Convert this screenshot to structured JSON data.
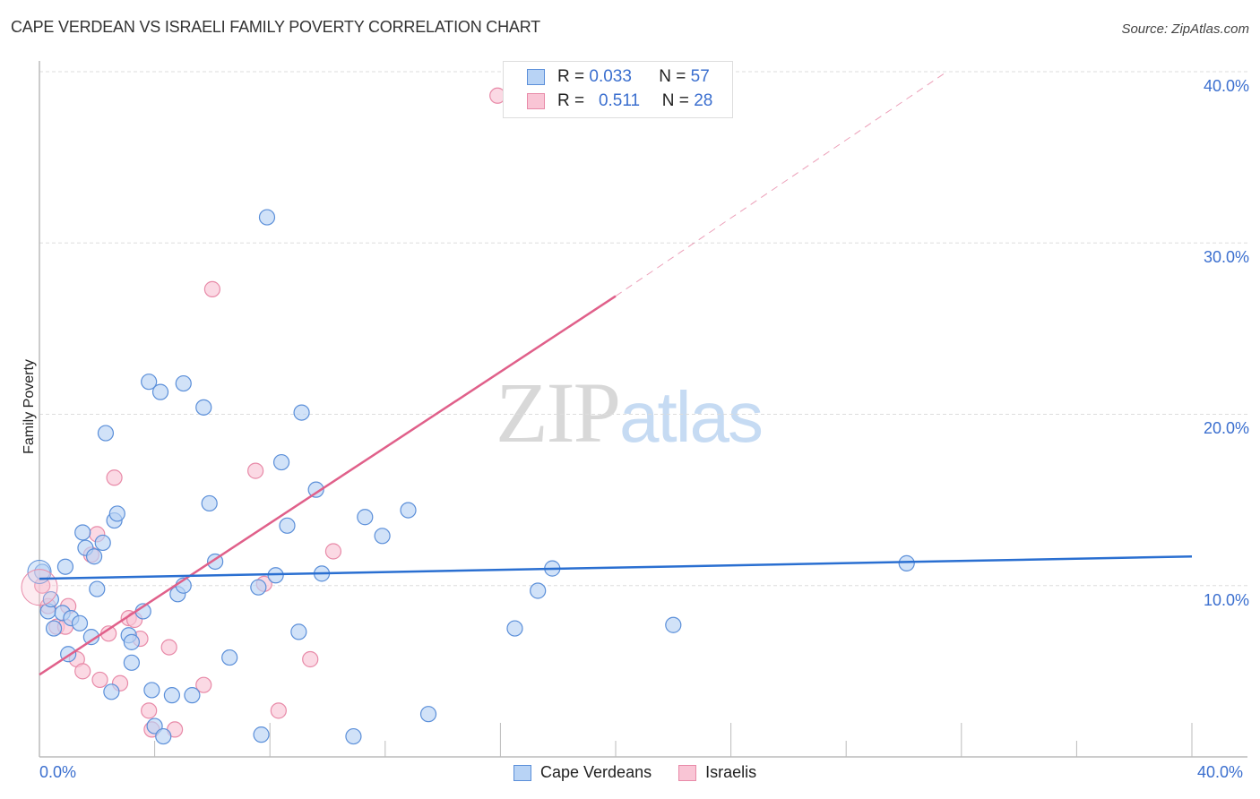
{
  "header": {
    "title": "CAPE VERDEAN VS ISRAELI FAMILY POVERTY CORRELATION CHART",
    "source": "Source: ZipAtlas.com"
  },
  "watermark": {
    "zip": "ZIP",
    "atlas": "atlas"
  },
  "legend": {
    "rows": [
      {
        "r_label": "R =",
        "r_value": "0.033",
        "n_label": "N =",
        "n_value": "57"
      },
      {
        "r_label": "R =",
        "r_value": "0.511",
        "n_label": "N =",
        "n_value": "28"
      }
    ]
  },
  "bottom_legend": {
    "items": [
      {
        "label": "Cape Verdeans"
      },
      {
        "label": "Israelis"
      }
    ]
  },
  "axes": {
    "ylabel": "Family Poverty",
    "y_ticks": [
      "40.0%",
      "30.0%",
      "20.0%",
      "10.0%"
    ],
    "x_ticks": [
      "0.0%",
      "40.0%"
    ]
  },
  "colors": {
    "blue_fill": "#b8d3f5",
    "blue_stroke": "#5b8fd9",
    "blue_line": "#2a6fd1",
    "pink_fill": "#f9c5d5",
    "pink_stroke": "#e88aa8",
    "pink_line": "#e0608a",
    "tick_text": "#3b6fcf"
  },
  "chart_data": {
    "type": "scatter",
    "title": "CAPE VERDEAN VS ISRAELI FAMILY POVERTY CORRELATION CHART",
    "xlabel": "",
    "ylabel": "Family Poverty",
    "xlim": [
      0,
      40
    ],
    "ylim": [
      0,
      40
    ],
    "x_tick_labels": [
      "0.0%",
      "40.0%"
    ],
    "y_tick_labels": [
      "10.0%",
      "20.0%",
      "30.0%",
      "40.0%"
    ],
    "grid": true,
    "legend_position": "top-center",
    "series": [
      {
        "name": "Cape Verdeans",
        "R": 0.033,
        "N": 57,
        "trend": {
          "x": [
            0,
            40
          ],
          "y": [
            10.4,
            11.7
          ]
        },
        "points": [
          [
            0.1,
            10.8
          ],
          [
            0.3,
            8.5
          ],
          [
            0.4,
            9.2
          ],
          [
            0.5,
            7.5
          ],
          [
            0.8,
            8.4
          ],
          [
            0.9,
            11.1
          ],
          [
            1.0,
            6.0
          ],
          [
            1.1,
            8.1
          ],
          [
            1.4,
            7.8
          ],
          [
            1.5,
            13.1
          ],
          [
            1.6,
            12.2
          ],
          [
            1.8,
            7.0
          ],
          [
            1.9,
            11.7
          ],
          [
            2.0,
            9.8
          ],
          [
            2.2,
            12.5
          ],
          [
            2.3,
            18.9
          ],
          [
            2.5,
            3.8
          ],
          [
            2.6,
            13.8
          ],
          [
            2.7,
            14.2
          ],
          [
            3.1,
            7.1
          ],
          [
            3.2,
            5.5
          ],
          [
            3.2,
            6.7
          ],
          [
            3.6,
            8.5
          ],
          [
            3.8,
            21.9
          ],
          [
            3.9,
            3.9
          ],
          [
            4.0,
            1.8
          ],
          [
            4.2,
            21.3
          ],
          [
            4.3,
            1.2
          ],
          [
            4.6,
            3.6
          ],
          [
            4.8,
            9.5
          ],
          [
            5.0,
            10.0
          ],
          [
            5.0,
            21.8
          ],
          [
            5.3,
            3.6
          ],
          [
            5.7,
            20.4
          ],
          [
            5.9,
            14.8
          ],
          [
            6.1,
            11.4
          ],
          [
            6.6,
            5.8
          ],
          [
            7.6,
            9.9
          ],
          [
            7.7,
            1.3
          ],
          [
            7.9,
            31.5
          ],
          [
            8.2,
            10.6
          ],
          [
            8.4,
            17.2
          ],
          [
            8.6,
            13.5
          ],
          [
            9.0,
            7.3
          ],
          [
            9.1,
            20.1
          ],
          [
            9.6,
            15.6
          ],
          [
            9.8,
            10.7
          ],
          [
            10.9,
            1.2
          ],
          [
            11.3,
            14.0
          ],
          [
            11.9,
            12.9
          ],
          [
            12.8,
            14.4
          ],
          [
            13.5,
            2.5
          ],
          [
            16.5,
            7.5
          ],
          [
            17.3,
            9.7
          ],
          [
            17.8,
            11.0
          ],
          [
            22.0,
            7.7
          ],
          [
            30.1,
            11.3
          ]
        ]
      },
      {
        "name": "Israelis",
        "R": 0.511,
        "N": 28,
        "trend": {
          "x": [
            0,
            20
          ],
          "y": [
            4.8,
            26.9
          ]
        },
        "trend_dashed_extension": {
          "x": [
            20,
            31.5
          ],
          "y": [
            26.9,
            40.0
          ]
        },
        "points": [
          [
            0.1,
            10.0
          ],
          [
            0.3,
            8.8
          ],
          [
            0.6,
            7.6
          ],
          [
            0.9,
            7.6
          ],
          [
            1.0,
            8.8
          ],
          [
            1.3,
            5.7
          ],
          [
            1.5,
            5.0
          ],
          [
            1.8,
            11.8
          ],
          [
            2.0,
            13.0
          ],
          [
            2.1,
            4.5
          ],
          [
            2.4,
            7.2
          ],
          [
            2.6,
            16.3
          ],
          [
            2.8,
            4.3
          ],
          [
            3.1,
            8.1
          ],
          [
            3.3,
            8.0
          ],
          [
            3.5,
            6.9
          ],
          [
            3.8,
            2.7
          ],
          [
            3.9,
            1.6
          ],
          [
            4.5,
            6.4
          ],
          [
            4.7,
            1.6
          ],
          [
            5.7,
            4.2
          ],
          [
            6.0,
            27.3
          ],
          [
            7.5,
            16.7
          ],
          [
            7.8,
            10.1
          ],
          [
            8.3,
            2.7
          ],
          [
            9.4,
            5.7
          ],
          [
            10.2,
            12.0
          ],
          [
            15.9,
            38.6
          ]
        ]
      }
    ]
  }
}
